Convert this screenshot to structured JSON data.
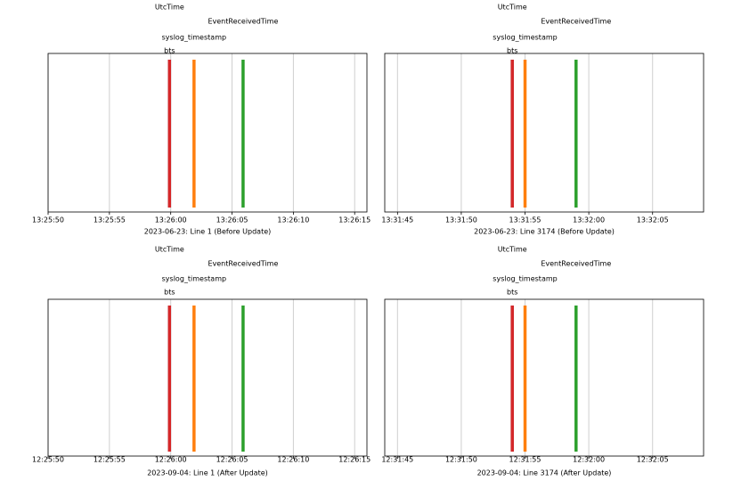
{
  "chart_data": [
    {
      "type": "event",
      "xlabel": "2023-06-23: Line 1 (Before Update)",
      "xlim": [
        "13:25:50",
        "13:26:16"
      ],
      "xticks": [
        "13:25:50",
        "13:25:55",
        "13:26:00",
        "13:26:05",
        "13:26:10",
        "13:26:15"
      ],
      "grid": true,
      "series": [
        {
          "name": "UtcTime",
          "color": "#1f77b4",
          "x": "13:25:59.9"
        },
        {
          "name": "EventReceivedTime",
          "color": "#2ca02c",
          "x": "13:26:05.9"
        },
        {
          "name": "syslog_timestamp",
          "color": "#ff7f0e",
          "x": "13:26:01.9"
        },
        {
          "name": "bts",
          "color": "#d62728",
          "x": "13:25:59.9"
        }
      ]
    },
    {
      "type": "event",
      "xlabel": "2023-06-23: Line 3174 (Before Update)",
      "xlim": [
        "13:31:44",
        "13:32:09"
      ],
      "xticks": [
        "13:31:45",
        "13:31:50",
        "13:31:55",
        "13:32:00",
        "13:32:05"
      ],
      "grid": true,
      "series": [
        {
          "name": "UtcTime",
          "color": "#1f77b4",
          "x": "13:31:54"
        },
        {
          "name": "EventReceivedTime",
          "color": "#2ca02c",
          "x": "13:31:59"
        },
        {
          "name": "syslog_timestamp",
          "color": "#ff7f0e",
          "x": "13:31:55"
        },
        {
          "name": "bts",
          "color": "#d62728",
          "x": "13:31:54"
        }
      ]
    },
    {
      "type": "event",
      "xlabel": "2023-09-04: Line 1 (After Update)",
      "xlim": [
        "12:25:50",
        "12:26:16"
      ],
      "xticks": [
        "12:25:50",
        "12:25:55",
        "12:26:00",
        "12:26:05",
        "12:26:10",
        "12:26:15"
      ],
      "grid": true,
      "series": [
        {
          "name": "UtcTime",
          "color": "#1f77b4",
          "x": "12:25:59.9"
        },
        {
          "name": "EventReceivedTime",
          "color": "#2ca02c",
          "x": "12:26:05.9"
        },
        {
          "name": "syslog_timestamp",
          "color": "#ff7f0e",
          "x": "12:26:01.9"
        },
        {
          "name": "bts",
          "color": "#d62728",
          "x": "12:25:59.9"
        }
      ]
    },
    {
      "type": "event",
      "xlabel": "2023-09-04: Line 3174 (After Update)",
      "xlim": [
        "12:31:44",
        "12:32:09"
      ],
      "xticks": [
        "12:31:45",
        "12:31:50",
        "12:31:55",
        "12:32:00",
        "12:32:05"
      ],
      "grid": true,
      "series": [
        {
          "name": "UtcTime",
          "color": "#1f77b4",
          "x": "12:31:54"
        },
        {
          "name": "EventReceivedTime",
          "color": "#2ca02c",
          "x": "12:31:59"
        },
        {
          "name": "syslog_timestamp",
          "color": "#ff7f0e",
          "x": "12:31:55"
        },
        {
          "name": "bts",
          "color": "#d62728",
          "x": "12:31:54"
        }
      ]
    }
  ]
}
